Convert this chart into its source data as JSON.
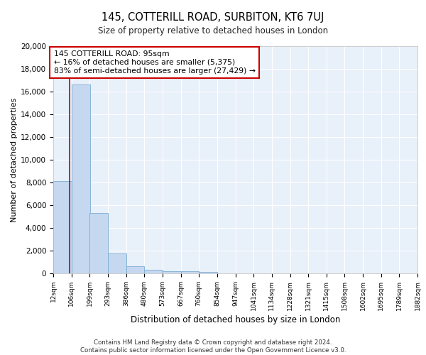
{
  "title": "145, COTTERILL ROAD, SURBITON, KT6 7UJ",
  "subtitle": "Size of property relative to detached houses in London",
  "xlabel": "Distribution of detached houses by size in London",
  "ylabel": "Number of detached properties",
  "bar_color": "#c5d8f0",
  "bar_edge_color": "#7aadd4",
  "bg_color": "#e8f0fa",
  "grid_color": "#ffffff",
  "property_size": 95,
  "property_line_color": "#cc0000",
  "annotation_text": "145 COTTERILL ROAD: 95sqm\n← 16% of detached houses are smaller (5,375)\n83% of semi-detached houses are larger (27,429) →",
  "annotation_box_color": "#cc0000",
  "footnote": "Contains HM Land Registry data © Crown copyright and database right 2024.\nContains public sector information licensed under the Open Government Licence v3.0.",
  "bin_labels": [
    "12sqm",
    "106sqm",
    "199sqm",
    "293sqm",
    "386sqm",
    "480sqm",
    "573sqm",
    "667sqm",
    "760sqm",
    "854sqm",
    "947sqm",
    "1041sqm",
    "1134sqm",
    "1228sqm",
    "1321sqm",
    "1415sqm",
    "1508sqm",
    "1602sqm",
    "1695sqm",
    "1789sqm",
    "1882sqm"
  ],
  "bin_edges": [
    12,
    106,
    199,
    293,
    386,
    480,
    573,
    667,
    760,
    854,
    947,
    1041,
    1134,
    1228,
    1321,
    1415,
    1508,
    1602,
    1695,
    1789,
    1882
  ],
  "bar_heights": [
    8100,
    16600,
    5300,
    1750,
    650,
    330,
    210,
    175,
    150,
    0,
    0,
    0,
    0,
    0,
    0,
    0,
    0,
    0,
    0,
    0
  ],
  "ylim": [
    0,
    20000
  ],
  "yticks": [
    0,
    2000,
    4000,
    6000,
    8000,
    10000,
    12000,
    14000,
    16000,
    18000,
    20000
  ]
}
